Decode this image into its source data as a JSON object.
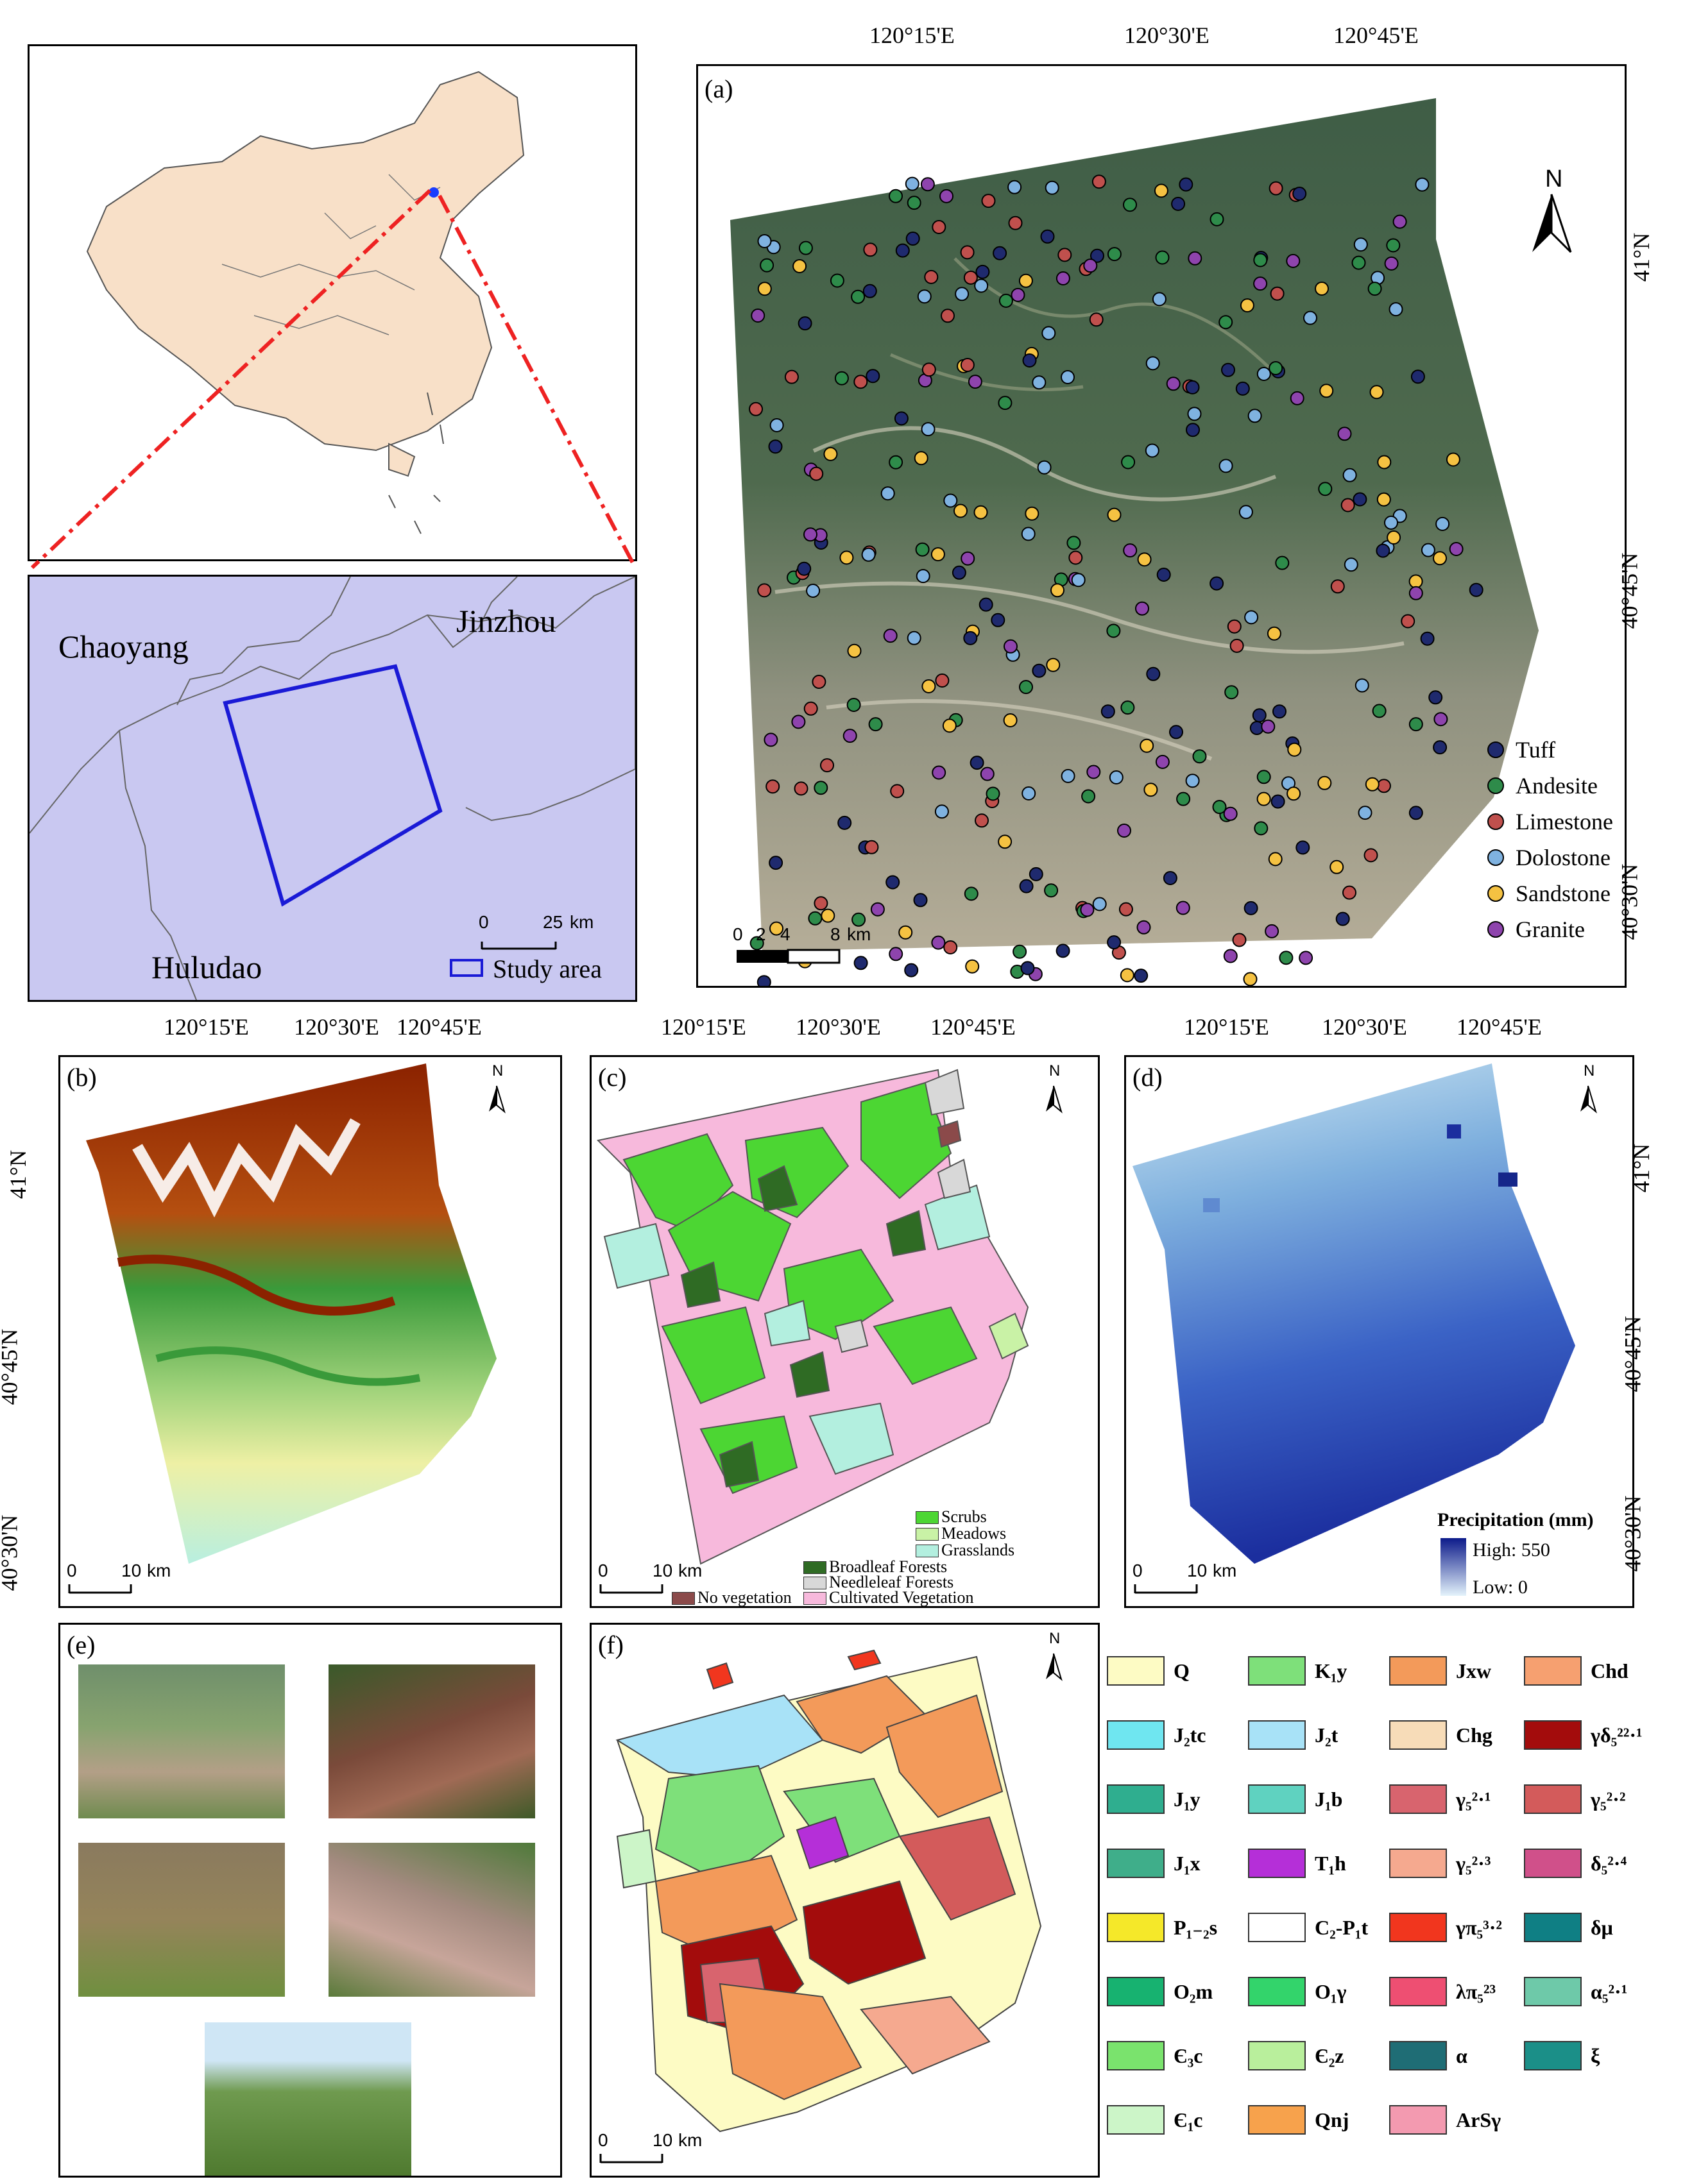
{
  "panel_a": {
    "label": "(a)",
    "top_ticks": [
      "120°15'E",
      "120°30'E",
      "120°45'E"
    ],
    "right_ticks": [
      "41°N",
      "40°45'N",
      "40°30'N"
    ],
    "north": "N",
    "scalebar": [
      "0",
      "2",
      "4",
      "8",
      "km"
    ],
    "legend": [
      {
        "name": "Tuff",
        "color": "#1f2a6e"
      },
      {
        "name": "Andesite",
        "color": "#2e8b4a"
      },
      {
        "name": "Limestone",
        "color": "#c0504d"
      },
      {
        "name": "Dolostone",
        "color": "#7fb2e0"
      },
      {
        "name": "Sandstone",
        "color": "#f5c242"
      },
      {
        "name": "Granite",
        "color": "#8e44ad"
      }
    ]
  },
  "locator": {
    "cities": [
      "Chaoyang",
      "Jinzhou",
      "Huludao"
    ],
    "scalebar": [
      "0",
      "25",
      "km"
    ],
    "legend": "Study area"
  },
  "panel_b": {
    "label": "(b)",
    "top_ticks": [
      "120°15'E",
      "120°30'E",
      "120°45'E"
    ],
    "left_ticks": [
      "41°N",
      "40°45'N",
      "40°30'N"
    ],
    "north": "N",
    "scalebar": [
      "0",
      "10",
      "km"
    ]
  },
  "panel_c": {
    "label": "(c)",
    "top_ticks": [
      "120°15'E",
      "120°30'E",
      "120°45'E"
    ],
    "north": "N",
    "scalebar": [
      "0",
      "10",
      "km"
    ],
    "legend": [
      {
        "name": "Scrubs",
        "color": "#4cd633"
      },
      {
        "name": "Meadows",
        "color": "#c9f2a6"
      },
      {
        "name": "Grasslands",
        "color": "#b3efdf"
      },
      {
        "name": "Broadleaf Forests",
        "color": "#2f6b24"
      },
      {
        "name": "Needleleaf Forests",
        "color": "#d8d8d8"
      },
      {
        "name": "No vegetation",
        "color": "#8b4a4a"
      },
      {
        "name": "Cultivated Vegetation",
        "color": "#f7b9dc"
      }
    ]
  },
  "panel_d": {
    "label": "(d)",
    "top_ticks": [
      "120°15'E",
      "120°30'E",
      "120°45'E"
    ],
    "right_ticks": [
      "41°N",
      "40°45'N",
      "40°30'N"
    ],
    "north": "N",
    "scalebar": [
      "0",
      "10",
      "km"
    ],
    "legend_title": "Precipitation (mm)",
    "legend_high": "High: 550",
    "legend_low": "Low: 0"
  },
  "panel_e": {
    "label": "(e)"
  },
  "panel_f": {
    "label": "(f)",
    "north": "N",
    "scalebar": [
      "0",
      "10",
      "km"
    ]
  },
  "geology_legend": [
    {
      "label": "Q",
      "color": "#fdfbc4"
    },
    {
      "label": "K₁y",
      "color": "#7ee07a"
    },
    {
      "label": "Jxw",
      "color": "#f39a5a"
    },
    {
      "label": "Chd",
      "color": "#f6a070"
    },
    {
      "label": "J₂tc",
      "color": "#6fe6f0"
    },
    {
      "label": "J₂t",
      "color": "#a8e2f7"
    },
    {
      "label": "Chg",
      "color": "#f7dcb8"
    },
    {
      "label": "γδ₅²²·¹",
      "color": "#a30c0c"
    },
    {
      "label": "J₁y",
      "color": "#2fae8f"
    },
    {
      "label": "J₁b",
      "color": "#5fd2c0"
    },
    {
      "label": "γ₅²·¹",
      "color": "#d8646e"
    },
    {
      "label": "γ₅²·²",
      "color": "#d35b5b"
    },
    {
      "label": "J₁x",
      "color": "#3fae8a"
    },
    {
      "label": "T₁h",
      "color": "#b52fd8"
    },
    {
      "label": "γ₅²·³",
      "color": "#f5a98f"
    },
    {
      "label": "δ₅²·⁴",
      "color": "#d0508a"
    },
    {
      "label": "P₁₋₂s",
      "color": "#f5e829"
    },
    {
      "label": "C₂-P₁t",
      "color": "#ffffff"
    },
    {
      "label": "γπ₅³·²",
      "color": "#f1361e"
    },
    {
      "label": "δμ",
      "color": "#0f7f84"
    },
    {
      "label": "O₂m",
      "color": "#17b270"
    },
    {
      "label": "O₁γ",
      "color": "#33d46b"
    },
    {
      "label": "λπ₅²³",
      "color": "#ee4f72"
    },
    {
      "label": "α₅²·¹",
      "color": "#6ec9a9"
    },
    {
      "label": "Є₃c",
      "color": "#7ae36d"
    },
    {
      "label": "Є₂z",
      "color": "#b9ef9c"
    },
    {
      "label": "α",
      "color": "#1f6d75"
    },
    {
      "label": "ξ",
      "color": "#1b8f88"
    },
    {
      "label": "Є₁c",
      "color": "#ccf5c8"
    },
    {
      "label": "Qnj",
      "color": "#f7a24c"
    },
    {
      "label": "ArSγ",
      "color": "#f39ab0"
    }
  ]
}
